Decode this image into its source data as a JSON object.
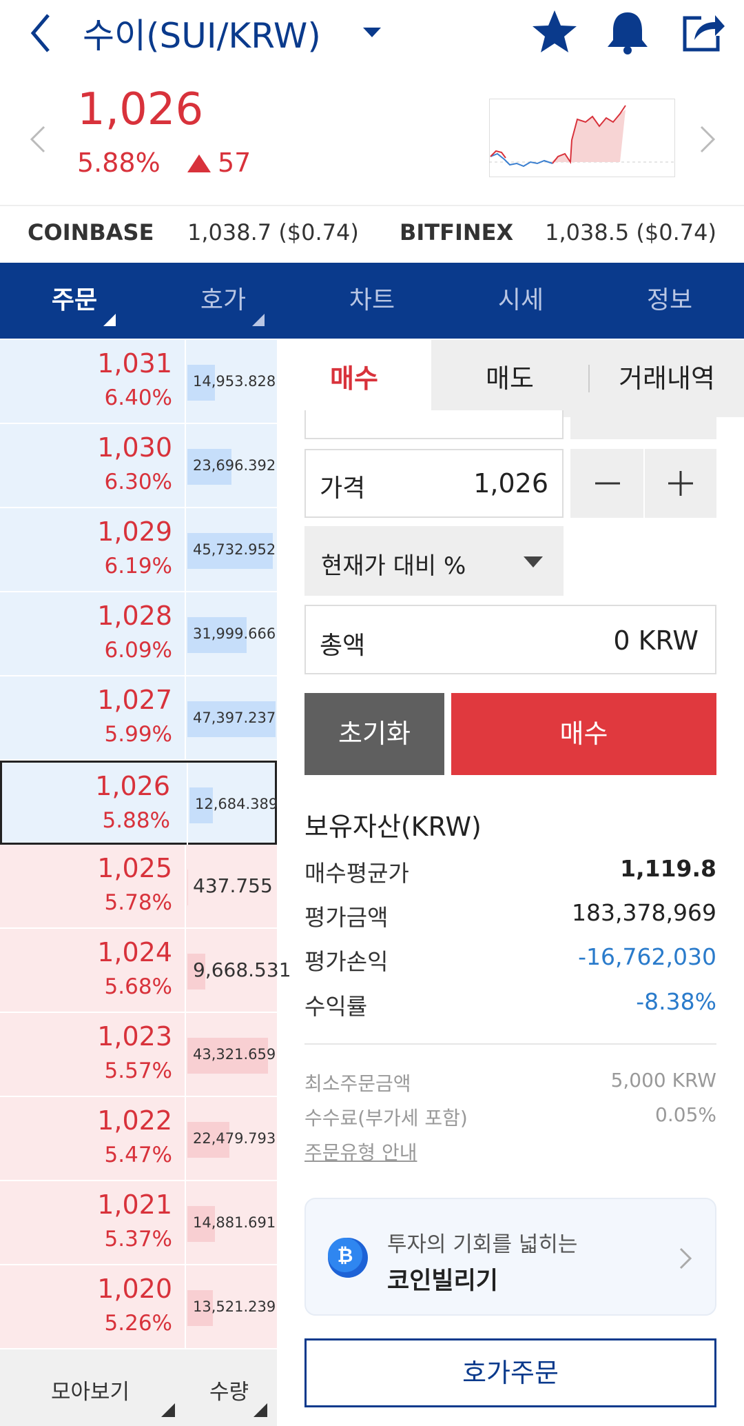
{
  "header": {
    "title": "수이(SUI/KRW)",
    "price": "1,026",
    "change_rate": "5.88%",
    "change": "57"
  },
  "exchanges": [
    {
      "name": "COINBASE",
      "price": "1,038.7 ($0.74)"
    },
    {
      "name": "BITFINEX",
      "price": "1,038.5 ($0.74)"
    }
  ],
  "tabs": [
    "주문",
    "호가",
    "차트",
    "시세",
    "정보"
  ],
  "orderbook": {
    "asks": [
      {
        "price": "1,031",
        "rate": "6.40%",
        "quantity": "14,953.828"
      },
      {
        "price": "1,030",
        "rate": "6.30%",
        "quantity": "23,696.392"
      },
      {
        "price": "1,029",
        "rate": "6.19%",
        "quantity": "45,732.952"
      },
      {
        "price": "1,028",
        "rate": "6.09%",
        "quantity": "31,999.666"
      },
      {
        "price": "1,027",
        "rate": "5.99%",
        "quantity": "47,397.237"
      },
      {
        "price": "1,026",
        "rate": "5.88%",
        "quantity": "12,684.389"
      }
    ],
    "bids": [
      {
        "price": "1,025",
        "rate": "5.78%",
        "quantity": "437.755"
      },
      {
        "price": "1,024",
        "rate": "5.68%",
        "quantity": "9,668.531"
      },
      {
        "price": "1,023",
        "rate": "5.57%",
        "quantity": "43,321.659"
      },
      {
        "price": "1,022",
        "rate": "5.47%",
        "quantity": "22,479.793"
      },
      {
        "price": "1,021",
        "rate": "5.37%",
        "quantity": "14,881.691"
      },
      {
        "price": "1,020",
        "rate": "5.26%",
        "quantity": "13,521.239"
      }
    ]
  },
  "bottom_bar": [
    "모아보기",
    "수량"
  ],
  "order_tabs": [
    "매수",
    "매도",
    "거래내역"
  ],
  "form": {
    "price_label": "가격",
    "price_value": "1,026",
    "dropdown": "현재가 대비 %",
    "total_label": "총액",
    "total_value": "0 KRW",
    "reset": "초기화",
    "submit": "매수"
  },
  "holdings": {
    "title": "보유자산(KRW)",
    "rows": [
      [
        "매수평균가",
        "1,119.8"
      ],
      [
        "평가금액",
        "183,378,969"
      ],
      [
        "평가손익",
        "-16,762,030"
      ],
      [
        "수익률",
        "-8.38%"
      ]
    ]
  },
  "info": {
    "rows": [
      [
        "최소주문금액",
        "5,000 KRW"
      ],
      [
        "수수료(부가세 포함)",
        "0.05%"
      ]
    ],
    "guide": "주문유형 안내"
  },
  "banner": {
    "subtitle": "투자의 기회를 넓히는",
    "title": "코인빌리기"
  },
  "order_button": "호가주문"
}
